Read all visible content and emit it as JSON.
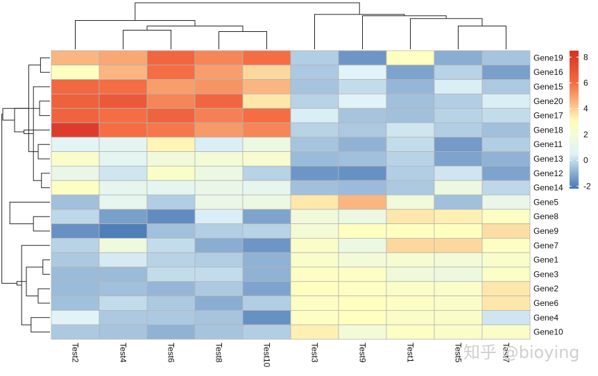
{
  "watermark": "知乎 @bioying",
  "chart_data": {
    "type": "heatmap",
    "title": "",
    "columns": [
      "Test2",
      "Test4",
      "Test6",
      "Test8",
      "Test10",
      "Test3",
      "Test9",
      "Test1",
      "Test5",
      "Test7"
    ],
    "rows": [
      "Gene19",
      "Gene16",
      "Gene15",
      "Gene20",
      "Gene17",
      "Gene18",
      "Gene11",
      "Gene13",
      "Gene12",
      "Gene14",
      "Gene5",
      "Gene8",
      "Gene9",
      "Gene7",
      "Gene1",
      "Gene3",
      "Gene2",
      "Gene6",
      "Gene4",
      "Gene10"
    ],
    "values": [
      [
        4.5,
        4.8,
        6.3,
        5.5,
        6.0,
        -0.3,
        -1.5,
        2.9,
        -1.0,
        -0.5
      ],
      [
        3.0,
        4.5,
        6.0,
        5.0,
        3.8,
        -0.4,
        0.5,
        -1.2,
        -0.2,
        -1.3
      ],
      [
        6.2,
        6.0,
        5.0,
        5.2,
        4.5,
        -0.5,
        0.0,
        -0.8,
        0.4,
        -0.4
      ],
      [
        6.5,
        6.8,
        5.5,
        6.3,
        3.5,
        -0.2,
        0.6,
        -0.6,
        -0.3,
        0.4
      ],
      [
        6.4,
        6.0,
        6.4,
        5.6,
        6.0,
        0.4,
        -0.5,
        -0.6,
        -0.2,
        0.0
      ],
      [
        8.0,
        6.0,
        5.8,
        5.1,
        5.5,
        -0.2,
        -0.4,
        0.2,
        -0.3,
        -0.6
      ],
      [
        0.7,
        0.8,
        3.2,
        0.4,
        1.5,
        -0.5,
        -0.9,
        0.0,
        -1.4,
        -0.3
      ],
      [
        2.5,
        0.8,
        1.8,
        2.0,
        2.3,
        -0.7,
        -0.6,
        -0.2,
        -1.2,
        -0.9
      ],
      [
        1.2,
        0.2,
        2.6,
        1.5,
        -0.2,
        -1.5,
        -1.6,
        -0.3,
        0.2,
        -1.2
      ],
      [
        2.8,
        1.0,
        0.9,
        1.2,
        1.0,
        -0.6,
        -0.7,
        -0.4,
        1.5,
        -0.1
      ],
      [
        -0.6,
        1.0,
        -0.3,
        1.3,
        1.5,
        3.5,
        4.5,
        1.8,
        -0.6,
        1.2
      ],
      [
        -0.1,
        -1.3,
        -1.7,
        0.4,
        -1.2,
        1.8,
        1.5,
        3.5,
        3.3,
        2.8
      ],
      [
        -1.6,
        -2.0,
        -0.6,
        -0.3,
        -0.2,
        2.0,
        3.0,
        3.0,
        3.0,
        3.7
      ],
      [
        -0.2,
        1.7,
        0.0,
        -1.0,
        -1.5,
        2.6,
        1.5,
        3.8,
        3.8,
        2.8
      ],
      [
        -0.4,
        0.3,
        -0.2,
        -0.3,
        -0.9,
        2.5,
        2.0,
        2.3,
        2.0,
        2.5
      ],
      [
        -0.7,
        -0.7,
        0.0,
        0.0,
        -0.9,
        2.8,
        2.8,
        1.8,
        1.6,
        2.7
      ],
      [
        -0.7,
        -0.6,
        -0.8,
        -0.4,
        -1.2,
        3.0,
        2.8,
        2.6,
        2.6,
        3.5
      ],
      [
        -0.6,
        0.0,
        -0.4,
        -1.0,
        -0.3,
        2.8,
        3.0,
        2.8,
        2.6,
        3.5
      ],
      [
        0.6,
        -0.4,
        -0.4,
        -0.5,
        -1.6,
        2.8,
        3.0,
        2.6,
        2.6,
        0.2
      ],
      [
        -0.4,
        -0.5,
        -0.9,
        -0.5,
        -0.3,
        3.3,
        2.0,
        2.8,
        2.6,
        2.6
      ]
    ],
    "color_scale": {
      "range": [
        -2.2,
        8.5
      ],
      "stops": [
        {
          "value": -2.2,
          "color": "#4575b4"
        },
        {
          "value": 0.5,
          "color": "#e0f3f8"
        },
        {
          "value": 3.0,
          "color": "#ffffbf"
        },
        {
          "value": 6.0,
          "color": "#f46d43"
        },
        {
          "value": 8.5,
          "color": "#d73027"
        }
      ]
    },
    "legend": {
      "position": "right",
      "ticks": [
        8,
        6,
        4,
        2,
        0,
        -2
      ]
    },
    "row_dendrogram": {
      "position": "left",
      "merges": [
        [
          8,
          9,
          0.18
        ],
        [
          0,
          1,
          0.2
        ],
        [
          3,
          4,
          0.22
        ],
        [
          2,
          20,
          0.35
        ],
        [
          23,
          5,
          0.55
        ],
        [
          22,
          24,
          0.75
        ],
        [
          6,
          7,
          0.25
        ],
        [
          26,
          21,
          0.45
        ],
        [
          25,
          27,
          1.0
        ],
        [
          14,
          15,
          0.15
        ],
        [
          16,
          17,
          0.25
        ],
        [
          19,
          18,
          0.4
        ],
        [
          29,
          30,
          0.5
        ],
        [
          13,
          31,
          0.6
        ],
        [
          11,
          12,
          0.35
        ],
        [
          33,
          32,
          0.7
        ],
        [
          34,
          10,
          0.85
        ],
        [
          28,
          35,
          1.02
        ]
      ]
    },
    "col_dendrogram": {
      "position": "top",
      "merges": [
        [
          3,
          4,
          0.38
        ],
        [
          1,
          2,
          0.41
        ],
        [
          10,
          11,
          0.5
        ],
        [
          0,
          12,
          0.62
        ],
        [
          8,
          9,
          0.5
        ],
        [
          7,
          14,
          0.66
        ],
        [
          6,
          15,
          0.72
        ],
        [
          5,
          16,
          0.75
        ],
        [
          13,
          17,
          1.0
        ]
      ]
    }
  }
}
